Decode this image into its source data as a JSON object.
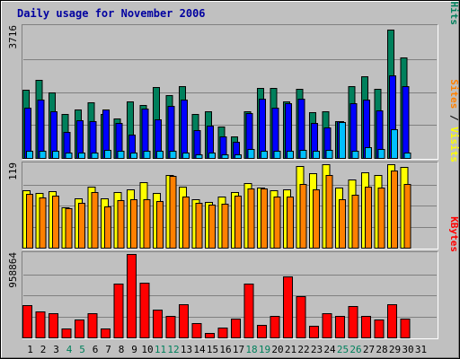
{
  "title": "Daily usage for November 2006",
  "colors": {
    "background": "#c0c0c0",
    "title": "#0000a0",
    "hits": "#00805c",
    "files": "#0000ff",
    "pages": "#00c0ff",
    "visits": "#ffff00",
    "sites": "#ff8000",
    "kbytes": "#ff0000",
    "day_default": "#000000",
    "day_weekend": "#00805c"
  },
  "chart_data": [
    {
      "type": "bar",
      "name": "hits-files-pages",
      "ymax_label": "3716",
      "ylim": [
        0,
        3716
      ],
      "legend": [
        {
          "key": "pages",
          "label": "Pages",
          "sep": " / "
        },
        {
          "key": "files",
          "label": "Files",
          "sep": " / "
        },
        {
          "key": "hits",
          "label": "Hits",
          "sep": ""
        }
      ],
      "categories": [
        "1",
        "2",
        "3",
        "4",
        "5",
        "6",
        "7",
        "8",
        "9",
        "10",
        "11",
        "12",
        "13",
        "14",
        "15",
        "16",
        "17",
        "18",
        "19",
        "20",
        "21",
        "22",
        "23",
        "24",
        "25",
        "26",
        "27",
        "28",
        "29",
        "30",
        "31"
      ],
      "series": [
        {
          "name": "Hits",
          "values": [
            1950,
            2230,
            1860,
            1270,
            1400,
            1590,
            1260,
            1130,
            1610,
            1520,
            2020,
            1790,
            2050,
            1270,
            1330,
            920,
            620,
            1330,
            2000,
            1990,
            1620,
            1970,
            1320,
            1330,
            1070,
            2050,
            2320,
            1960,
            3650,
            2860,
            0
          ]
        },
        {
          "name": "Files",
          "values": [
            1430,
            1680,
            1330,
            760,
            1090,
            1060,
            1390,
            1010,
            690,
            1410,
            1100,
            1500,
            1680,
            800,
            930,
            630,
            480,
            1300,
            1700,
            1430,
            1570,
            1700,
            1010,
            880,
            1050,
            1570,
            1680,
            1370,
            2350,
            2050,
            0
          ]
        },
        {
          "name": "Pages",
          "values": [
            230,
            230,
            230,
            180,
            180,
            180,
            260,
            230,
            180,
            230,
            230,
            230,
            180,
            130,
            180,
            130,
            130,
            280,
            230,
            230,
            230,
            260,
            230,
            260,
            1030,
            230,
            330,
            280,
            840,
            180,
            0
          ]
        }
      ]
    },
    {
      "type": "bar",
      "name": "visits-sites",
      "ymax_label": "119",
      "ylim": [
        0,
        119
      ],
      "legend": [
        {
          "key": "sites",
          "label": "Sites",
          "sep": " / "
        },
        {
          "key": "visits",
          "label": "Visits",
          "sep": ""
        }
      ],
      "categories": [
        "1",
        "2",
        "3",
        "4",
        "5",
        "6",
        "7",
        "8",
        "9",
        "10",
        "11",
        "12",
        "13",
        "14",
        "15",
        "16",
        "17",
        "18",
        "19",
        "20",
        "21",
        "22",
        "23",
        "24",
        "25",
        "26",
        "27",
        "28",
        "29",
        "30",
        "31"
      ],
      "series": [
        {
          "name": "Visits",
          "values": [
            82,
            79,
            81,
            58,
            71,
            87,
            71,
            80,
            84,
            94,
            79,
            104,
            87,
            70,
            66,
            73,
            80,
            92,
            86,
            82,
            84,
            117,
            106,
            119,
            86,
            97,
            108,
            104,
            119,
            115,
            0
          ]
        },
        {
          "name": "Sites",
          "values": [
            77,
            72,
            75,
            57,
            65,
            80,
            60,
            68,
            69,
            69,
            67,
            102,
            74,
            64,
            62,
            63,
            75,
            85,
            85,
            74,
            73,
            91,
            83,
            104,
            70,
            76,
            87,
            86,
            110,
            91,
            0
          ]
        }
      ]
    },
    {
      "type": "bar",
      "name": "kbytes",
      "ymax_label": "958864",
      "ylim": [
        0,
        958864
      ],
      "legend": [
        {
          "key": "kbytes",
          "label": "KBytes",
          "sep": ""
        }
      ],
      "categories": [
        "1",
        "2",
        "3",
        "4",
        "5",
        "6",
        "7",
        "8",
        "9",
        "10",
        "11",
        "12",
        "13",
        "14",
        "15",
        "16",
        "17",
        "18",
        "19",
        "20",
        "21",
        "22",
        "23",
        "24",
        "25",
        "26",
        "27",
        "28",
        "29",
        "30",
        "31"
      ],
      "series": [
        {
          "name": "KBytes",
          "values": [
            380000,
            310000,
            290000,
            110000,
            210000,
            290000,
            110000,
            620000,
            958864,
            630000,
            330000,
            260000,
            390000,
            170000,
            60000,
            120000,
            220000,
            620000,
            150000,
            250000,
            700000,
            480000,
            140000,
            290000,
            260000,
            370000,
            260000,
            210000,
            390000,
            220000,
            0
          ]
        }
      ]
    }
  ],
  "day_labels": [
    "1",
    "2",
    "3",
    "4",
    "5",
    "6",
    "7",
    "8",
    "9",
    "10",
    "11",
    "12",
    "13",
    "14",
    "15",
    "16",
    "17",
    "18",
    "19",
    "20",
    "21",
    "22",
    "23",
    "24",
    "25",
    "26",
    "27",
    "28",
    "29",
    "30",
    "31"
  ],
  "weekend_days": [
    4,
    5,
    11,
    12,
    18,
    19,
    25,
    26
  ]
}
